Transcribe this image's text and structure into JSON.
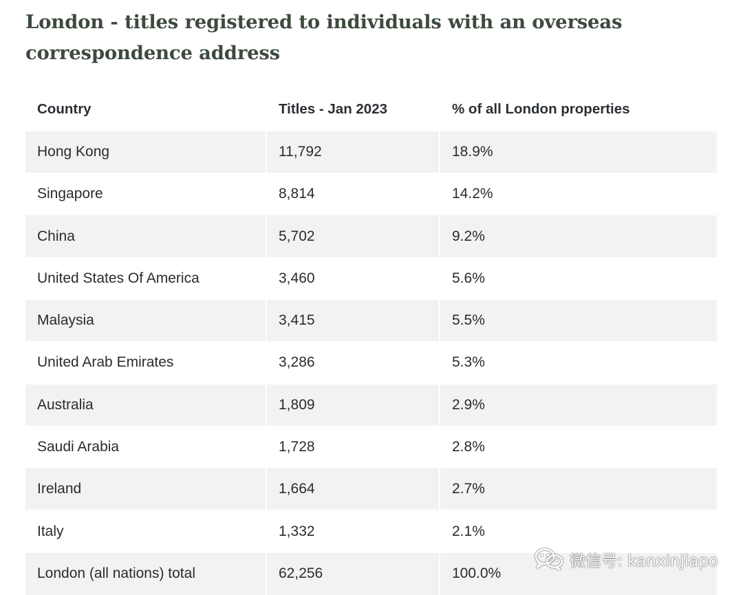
{
  "title": "London - titles registered to individuals with an overseas correspondence address",
  "table": {
    "headers": [
      "Country",
      "Titles - Jan 2023",
      "% of all London properties"
    ],
    "rows": [
      [
        "Hong Kong",
        "11,792",
        "18.9%"
      ],
      [
        "Singapore",
        "8,814",
        "14.2%"
      ],
      [
        "China",
        "5,702",
        "9.2%"
      ],
      [
        "United States Of America",
        "3,460",
        "5.6%"
      ],
      [
        "Malaysia",
        "3,415",
        "5.5%"
      ],
      [
        "United Arab Emirates",
        "3,286",
        "5.3%"
      ],
      [
        "Australia",
        "1,809",
        "2.9%"
      ],
      [
        "Saudi Arabia",
        "1,728",
        "2.8%"
      ],
      [
        "Ireland",
        "1,664",
        "2.7%"
      ],
      [
        "Italy",
        "1,332",
        "2.1%"
      ],
      [
        "London (all nations) total",
        "62,256",
        "100.0%"
      ]
    ]
  },
  "watermark": {
    "icon": "wechat-icon",
    "text": "微信号: kanxinjiapo"
  }
}
